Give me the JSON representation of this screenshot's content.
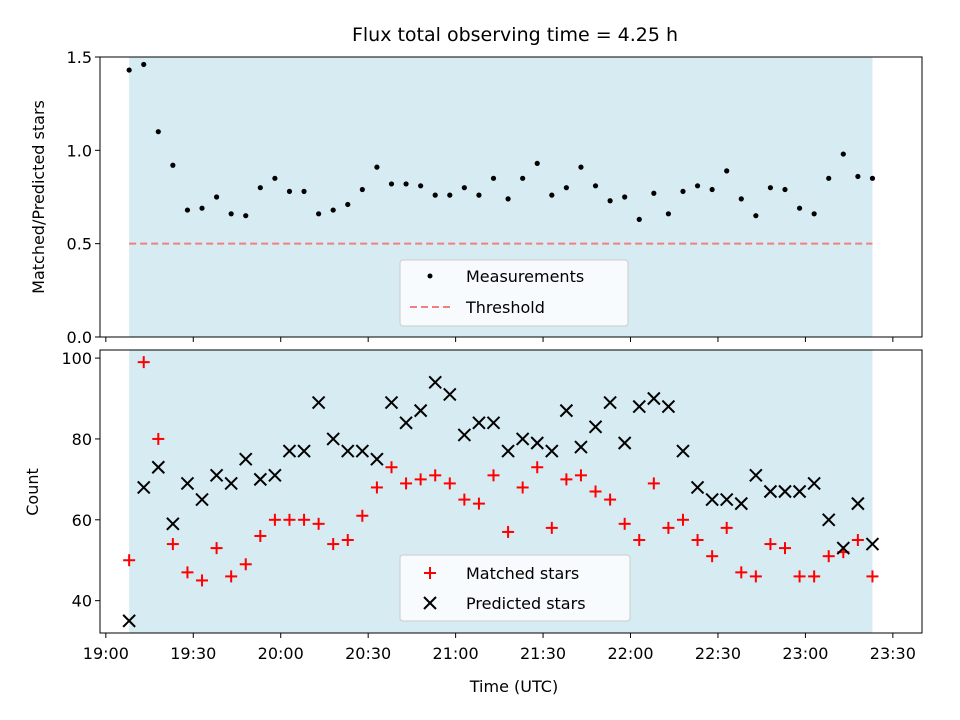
{
  "chart_data": [
    {
      "type": "scatter",
      "title": "Flux total observing time = 4.25 h",
      "xlabel": "",
      "ylabel": "Matched/Predicted stars",
      "xlim": [
        "18:58",
        "23:40"
      ],
      "ylim": [
        0,
        1.5
      ],
      "yticks": [
        "0.0",
        "0.5",
        "1.0",
        "1.5"
      ],
      "shaded_span": [
        "19:08",
        "23:23"
      ],
      "shade_color": "#add8e6",
      "threshold": 0.5,
      "threshold_color": "#f08080",
      "legend": {
        "placement": "lower-center",
        "entries": [
          "Measurements",
          "Threshold"
        ]
      },
      "series": [
        {
          "name": "Measurements",
          "color": "#000000",
          "marker": "dot",
          "x": [
            "19:08",
            "19:13",
            "19:18",
            "19:23",
            "19:28",
            "19:33",
            "19:38",
            "19:43",
            "19:48",
            "19:53",
            "19:58",
            "20:03",
            "20:08",
            "20:13",
            "20:18",
            "20:23",
            "20:28",
            "20:33",
            "20:38",
            "20:43",
            "20:48",
            "20:53",
            "20:58",
            "21:03",
            "21:08",
            "21:13",
            "21:18",
            "21:23",
            "21:28",
            "21:33",
            "21:38",
            "21:43",
            "21:48",
            "21:53",
            "21:58",
            "22:03",
            "22:08",
            "22:13",
            "22:18",
            "22:23",
            "22:28",
            "22:33",
            "22:38",
            "22:43",
            "22:48",
            "22:53",
            "22:58",
            "23:03",
            "23:08",
            "23:13",
            "23:18",
            "23:23"
          ],
          "values": [
            1.43,
            1.46,
            1.1,
            0.92,
            0.68,
            0.69,
            0.75,
            0.66,
            0.65,
            0.8,
            0.85,
            0.78,
            0.78,
            0.66,
            0.68,
            0.71,
            0.79,
            0.91,
            0.82,
            0.82,
            0.81,
            0.76,
            0.76,
            0.8,
            0.76,
            0.85,
            0.74,
            0.85,
            0.93,
            0.76,
            0.8,
            0.91,
            0.81,
            0.73,
            0.75,
            0.63,
            0.77,
            0.66,
            0.78,
            0.81,
            0.79,
            0.89,
            0.74,
            0.65,
            0.8,
            0.79,
            0.69,
            0.66,
            0.85,
            0.98,
            0.86,
            0.85
          ]
        }
      ]
    },
    {
      "type": "scatter",
      "title": "",
      "xlabel": "Time (UTC)",
      "ylabel": "Count",
      "xlim": [
        "18:58",
        "23:40"
      ],
      "ylim": [
        32,
        102
      ],
      "xticks": [
        "19:00",
        "19:30",
        "20:00",
        "20:30",
        "21:00",
        "21:30",
        "22:00",
        "22:30",
        "23:00",
        "23:30"
      ],
      "yticks": [
        "40",
        "60",
        "80",
        "100"
      ],
      "shaded_span": [
        "19:08",
        "23:23"
      ],
      "shade_color": "#add8e6",
      "legend": {
        "placement": "lower-center",
        "entries": [
          "Matched stars",
          "Predicted stars"
        ]
      },
      "series": [
        {
          "name": "Matched stars",
          "color": "#ff0000",
          "marker": "plus",
          "x": [
            "19:08",
            "19:13",
            "19:18",
            "19:23",
            "19:28",
            "19:33",
            "19:38",
            "19:43",
            "19:48",
            "19:53",
            "19:58",
            "20:03",
            "20:08",
            "20:13",
            "20:18",
            "20:23",
            "20:28",
            "20:33",
            "20:38",
            "20:43",
            "20:48",
            "20:53",
            "20:58",
            "21:03",
            "21:08",
            "21:13",
            "21:18",
            "21:23",
            "21:28",
            "21:33",
            "21:38",
            "21:43",
            "21:48",
            "21:53",
            "21:58",
            "22:03",
            "22:08",
            "22:13",
            "22:18",
            "22:23",
            "22:28",
            "22:33",
            "22:38",
            "22:43",
            "22:48",
            "22:53",
            "22:58",
            "23:03",
            "23:08",
            "23:13",
            "23:18",
            "23:23"
          ],
          "values": [
            50,
            99,
            80,
            54,
            47,
            45,
            53,
            46,
            49,
            56,
            60,
            60,
            60,
            59,
            54,
            55,
            61,
            68,
            73,
            69,
            70,
            71,
            69,
            65,
            64,
            71,
            57,
            68,
            73,
            58,
            70,
            71,
            67,
            65,
            59,
            55,
            69,
            58,
            60,
            55,
            51,
            58,
            47,
            46,
            54,
            53,
            46,
            46,
            51,
            52,
            55,
            46
          ]
        },
        {
          "name": "Predicted stars",
          "color": "#000000",
          "marker": "x",
          "x": [
            "19:08",
            "19:13",
            "19:18",
            "19:23",
            "19:28",
            "19:33",
            "19:38",
            "19:43",
            "19:48",
            "19:53",
            "19:58",
            "20:03",
            "20:08",
            "20:13",
            "20:18",
            "20:23",
            "20:28",
            "20:33",
            "20:38",
            "20:43",
            "20:48",
            "20:53",
            "20:58",
            "21:03",
            "21:08",
            "21:13",
            "21:18",
            "21:23",
            "21:28",
            "21:33",
            "21:38",
            "21:43",
            "21:48",
            "21:53",
            "21:58",
            "22:03",
            "22:08",
            "22:13",
            "22:18",
            "22:23",
            "22:28",
            "22:33",
            "22:38",
            "22:43",
            "22:48",
            "22:53",
            "22:58",
            "23:03",
            "23:08",
            "23:13",
            "23:18",
            "23:23"
          ],
          "values": [
            35,
            68,
            73,
            59,
            69,
            65,
            71,
            69,
            75,
            70,
            71,
            77,
            77,
            89,
            80,
            77,
            77,
            75,
            89,
            84,
            87,
            94,
            91,
            81,
            84,
            84,
            77,
            80,
            79,
            77,
            87,
            78,
            83,
            89,
            79,
            88,
            90,
            88,
            77,
            68,
            65,
            65,
            64,
            71,
            67,
            67,
            67,
            69,
            60,
            53,
            64,
            54
          ]
        }
      ]
    }
  ]
}
